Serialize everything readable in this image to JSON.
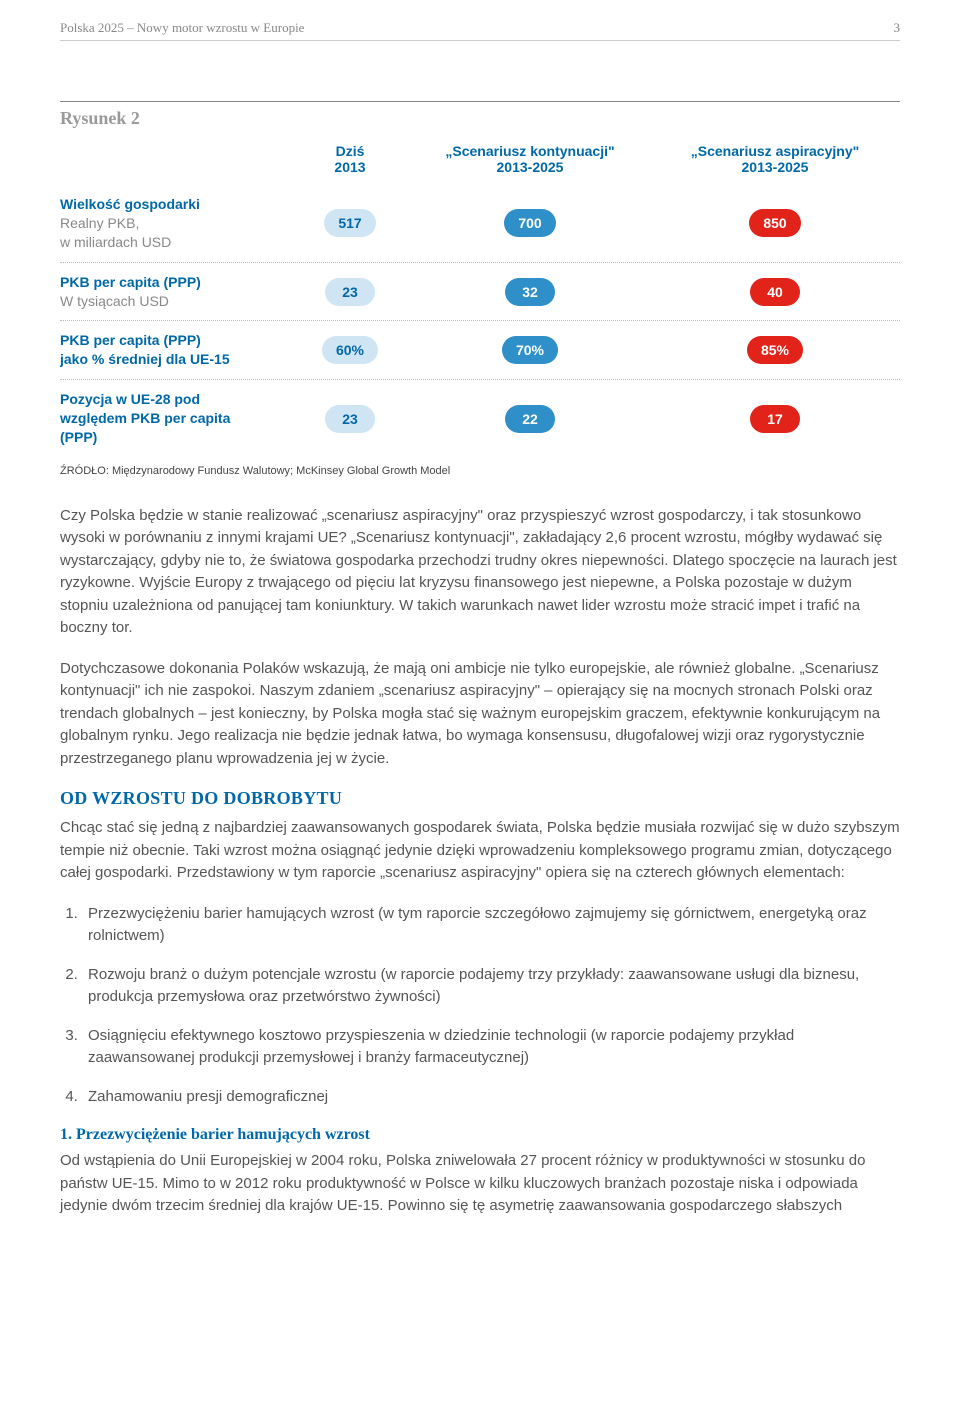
{
  "header": {
    "title": "Polska 2025 – Nowy motor wzrostu w Europie",
    "page_number": "3"
  },
  "figure": {
    "title": "Rysunek 2",
    "columns": {
      "c1_line1": "Dziś",
      "c1_line2": "2013",
      "c2_line1": "„Scenariusz kontynuacji\"",
      "c2_line2": "2013-2025",
      "c3_line1": "„Scenariusz aspiracyjny\"",
      "c3_line2": "2013-2025"
    },
    "rows": [
      {
        "label_bold": "Wielkość gospodarki",
        "label_sub1": "Realny PKB,",
        "label_sub2": "w miliardach USD",
        "v1": "517",
        "v2": "700",
        "v3": "850"
      },
      {
        "label_bold": "PKB per capita (PPP)",
        "label_sub1": "W tysiącach USD",
        "label_sub2": "",
        "v1": "23",
        "v2": "32",
        "v3": "40"
      },
      {
        "label_bold": "PKB per capita (PPP)",
        "label_bold2": "jako % średniej dla UE-15",
        "v1": "60%",
        "v2": "70%",
        "v3": "85%"
      },
      {
        "label_bold": "Pozycja w UE-28 pod",
        "label_bold2": "względem PKB per capita",
        "label_bold3": "(PPP)",
        "v1": "23",
        "v2": "22",
        "v3": "17"
      }
    ],
    "source": "ŹRÓDŁO: Międzynarodowy Fundusz Walutowy; McKinsey Global Growth Model",
    "colors": {
      "light_bg": "#cfe5f3",
      "light_text": "#0068a8",
      "mid_bg": "#2e8fc9",
      "dark_bg": "#e2231a",
      "header_text": "#0068a8"
    }
  },
  "paragraphs": {
    "p1": "Czy Polska będzie w stanie realizować „scenariusz aspiracyjny\" oraz przyspieszyć wzrost gospodarczy, i tak stosunkowo wysoki w porównaniu z innymi krajami UE? „Scenariusz kontynuacji\", zakładający 2,6 procent wzrostu, mógłby wydawać się wystarczający, gdyby nie to, że światowa gospodarka przechodzi trudny okres niepewności. Dlatego spoczęcie na laurach jest ryzykowne. Wyjście Europy z trwającego od pięciu lat kryzysu finansowego jest niepewne, a Polska pozostaje w dużym stopniu uzależniona od panującej tam koniunktury. W takich warunkach nawet lider wzrostu może stracić impet i trafić na boczny tor.",
    "p2": "Dotychczasowe dokonania Polaków wskazują, że mają oni ambicje nie tylko europejskie, ale również globalne. „Scenariusz kontynuacji\" ich nie zaspokoi. Naszym zdaniem „scenariusz aspiracyjny\" – opierający się na mocnych stronach Polski oraz trendach globalnych – jest konieczny, by Polska mogła stać się ważnym europejskim graczem, efektywnie konkurującym na globalnym rynku. Jego realizacja nie będzie jednak łatwa, bo wymaga konsensusu, długofalowej wizji oraz rygorystycznie przestrzeganego planu wprowadzenia jej w życie."
  },
  "section": {
    "heading": "OD WZROSTU DO DOBROBYTU",
    "intro": "Chcąc stać się jedną z najbardziej zaawansowanych gospodarek świata, Polska będzie musiała rozwijać się w dużo szybszym tempie niż obecnie. Taki wzrost można osiągnąć jedynie dzięki wprowadzeniu kompleksowego programu zmian, dotyczącego całej gospodarki. Przedstawiony w tym raporcie „scenariusz aspiracyjny\" opiera się na czterech głównych elementach:",
    "items": [
      "Przezwyciężeniu barier hamujących wzrost (w tym raporcie szczegółowo zajmujemy się górnictwem, energetyką oraz rolnictwem)",
      "Rozwoju branż o dużym potencjale wzrostu (w raporcie podajemy trzy przykłady: zaawansowane usługi dla biznesu, produkcja przemysłowa oraz przetwórstwo żywności)",
      "Osiągnięciu efektywnego kosztowo przyspieszenia w dziedzinie technologii (w raporcie podajemy przykład zaawansowanej produkcji przemysłowej i branży farmaceutycznej)",
      "Zahamowaniu presji demograficznej"
    ]
  },
  "subsection": {
    "heading": "1. Przezwyciężenie barier hamujących wzrost",
    "text": "Od wstąpienia do Unii Europejskiej w 2004 roku, Polska zniwelowała 27 procent różnicy w produktywności w stosunku do państw UE-15. Mimo to w 2012 roku produktywność w Polsce w kilku kluczowych branżach pozostaje niska i odpowiada jedynie dwóm trzecim średniej dla krajów UE-15. Powinno się tę asymetrię zaawansowania gospodarczego słabszych"
  }
}
